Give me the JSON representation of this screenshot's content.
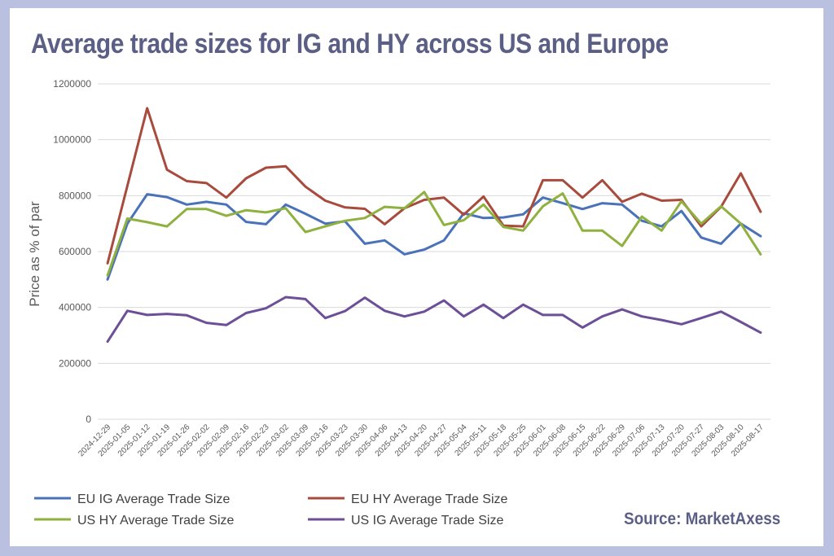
{
  "title": "Average trade sizes for IG and HY across US and Europe",
  "source": "Source: MarketAxess",
  "colors": {
    "background": "#b9c0e0",
    "title": "#5b5f85",
    "eu_ig": "#4a72b8",
    "eu_hy": "#a84a3c",
    "us_hy": "#8fb13f",
    "us_ig": "#6c4f97"
  },
  "chart_data": {
    "type": "line",
    "ylabel": "Price as % of par",
    "xlabel": "",
    "ylim": [
      0,
      1200000
    ],
    "yticks": [
      "0",
      "200000",
      "400000",
      "600000",
      "800000",
      "1000000",
      "1200000"
    ],
    "grid": true,
    "legend_position": "bottom",
    "x": [
      "2024-12-29",
      "2025-01-05",
      "2025-01-12",
      "2025-01-19",
      "2025-01-26",
      "2025-02-02",
      "2025-02-09",
      "2025-02-16",
      "2025-02-23",
      "2025-03-02",
      "2025-03-09",
      "2025-03-16",
      "2025-03-23",
      "2025-03-30",
      "2025-04-06",
      "2025-04-13",
      "2025-04-20",
      "2025-04-27",
      "2025-05-04",
      "2025-05-11",
      "2025-05-18",
      "2025-05-25",
      "2025-06-01",
      "2025-06-08",
      "2025-06-15",
      "2025-06-22",
      "2025-06-29",
      "2025-07-06",
      "2025-07-13",
      "2025-07-20",
      "2025-07-27",
      "2025-08-03",
      "2025-08-10",
      "2025-08-17"
    ],
    "series": [
      {
        "name": "EU IG Average Trade Size",
        "color": "#4a72b8",
        "values": [
          500000,
          700000,
          805000,
          795000,
          768000,
          778000,
          768000,
          706000,
          698000,
          768000,
          735000,
          700000,
          708000,
          628000,
          640000,
          590000,
          607000,
          640000,
          737000,
          720000,
          722000,
          733000,
          793000,
          773000,
          752000,
          773000,
          768000,
          710000,
          690000,
          745000,
          650000,
          628000,
          700000,
          655000
        ]
      },
      {
        "name": "EU HY Average Trade Size",
        "color": "#a84a3c",
        "values": [
          558000,
          835000,
          1113000,
          893000,
          852000,
          845000,
          793000,
          862000,
          900000,
          905000,
          832000,
          782000,
          758000,
          753000,
          698000,
          755000,
          785000,
          793000,
          732000,
          797000,
          693000,
          690000,
          855000,
          855000,
          793000,
          855000,
          778000,
          807000,
          782000,
          785000,
          690000,
          760000,
          880000,
          742000
        ]
      },
      {
        "name": "US HY Average Trade Size",
        "color": "#8fb13f",
        "values": [
          515000,
          718000,
          705000,
          690000,
          752000,
          752000,
          728000,
          748000,
          740000,
          755000,
          670000,
          690000,
          710000,
          720000,
          760000,
          755000,
          813000,
          695000,
          712000,
          768000,
          688000,
          675000,
          762000,
          808000,
          675000,
          675000,
          620000,
          725000,
          675000,
          780000,
          700000,
          762000,
          700000,
          590000
        ]
      },
      {
        "name": "US IG Average Trade Size",
        "color": "#6c4f97",
        "values": [
          278000,
          388000,
          373000,
          377000,
          372000,
          345000,
          337000,
          380000,
          397000,
          437000,
          430000,
          362000,
          387000,
          435000,
          388000,
          368000,
          385000,
          425000,
          368000,
          410000,
          362000,
          410000,
          373000,
          373000,
          328000,
          368000,
          393000,
          368000,
          355000,
          340000,
          362000,
          385000,
          348000,
          310000
        ]
      }
    ]
  }
}
